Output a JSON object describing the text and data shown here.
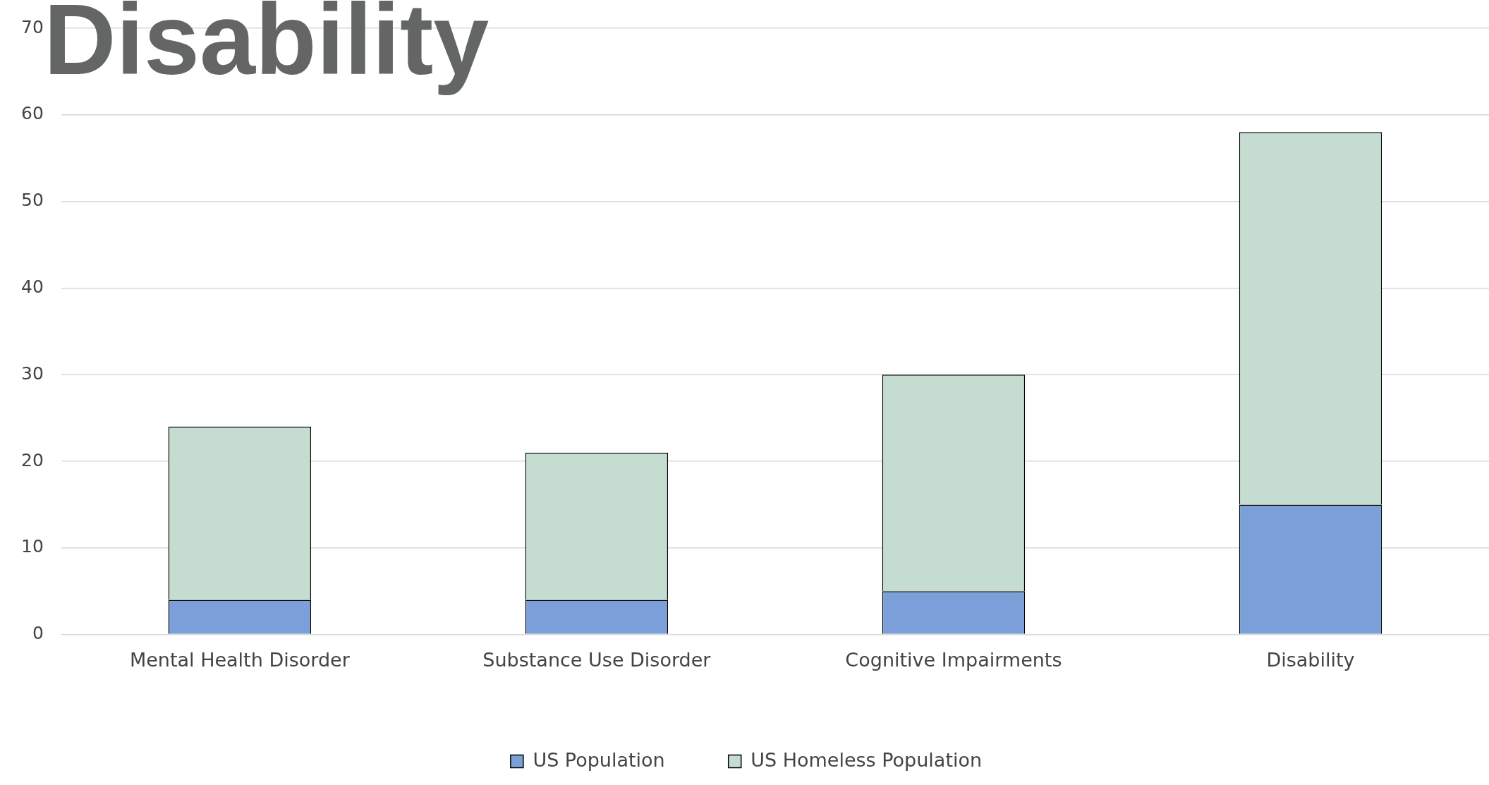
{
  "chart_data": {
    "type": "bar",
    "title": "Disability",
    "stacked": true,
    "categories": [
      "Mental Health Disorder",
      "Substance Use Disorder",
      "Cognitive Impairments",
      "Disability"
    ],
    "series": [
      {
        "name": "US Population",
        "color": "#7b9fd8",
        "values": [
          4,
          4,
          5,
          15
        ]
      },
      {
        "name": "US Homeless Population",
        "color": "#c5ddd0",
        "values": [
          20,
          17,
          25,
          43
        ]
      }
    ],
    "ylim": [
      0,
      70
    ],
    "yticks": [
      0,
      10,
      20,
      30,
      40,
      50,
      60,
      70
    ],
    "grid": "y",
    "legend": "bottom"
  }
}
